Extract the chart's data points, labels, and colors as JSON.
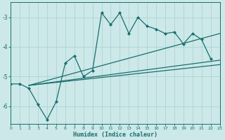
{
  "xlabel": "Humidex (Indice chaleur)",
  "bg_color": "#cce8e8",
  "grid_color": "#aad0d0",
  "line_color": "#1a6e6e",
  "xlim": [
    0,
    23
  ],
  "ylim": [
    -6.6,
    -2.5
  ],
  "yticks": [
    -6,
    -5,
    -4,
    -3
  ],
  "xticks": [
    0,
    1,
    2,
    3,
    4,
    5,
    6,
    7,
    8,
    9,
    10,
    11,
    12,
    13,
    14,
    15,
    16,
    17,
    18,
    19,
    20,
    21,
    22,
    23
  ],
  "zigzag_x": [
    0,
    1,
    2,
    3,
    4,
    5,
    6,
    7,
    8,
    9,
    10,
    11,
    12,
    13,
    14,
    15,
    16,
    17,
    18,
    19,
    20,
    21,
    22
  ],
  "zigzag_y": [
    -5.25,
    -5.25,
    -5.4,
    -5.95,
    -6.45,
    -5.85,
    -4.55,
    -4.3,
    -5.0,
    -4.8,
    -2.85,
    -3.25,
    -2.85,
    -3.55,
    -3.0,
    -3.3,
    -3.4,
    -3.55,
    -3.5,
    -3.9,
    -3.55,
    -3.75,
    -4.4
  ],
  "line1_x": [
    2,
    23
  ],
  "line1_y": [
    -5.3,
    -3.55
  ],
  "line2_x": [
    2,
    23
  ],
  "line2_y": [
    -5.3,
    -4.45
  ],
  "line3_x": [
    2,
    23
  ],
  "line3_y": [
    -5.3,
    -4.6
  ]
}
